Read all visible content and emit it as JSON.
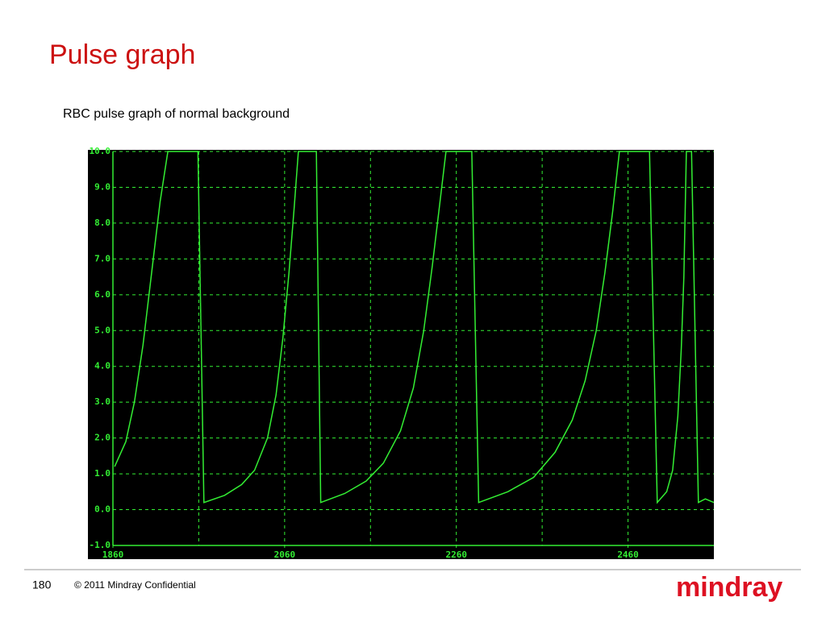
{
  "chart_data": {
    "type": "line",
    "title": "Pulse graph",
    "subtitle": "RBC pulse graph of normal background",
    "x": [
      1862,
      1875,
      1885,
      1895,
      1905,
      1915,
      1924,
      1959,
      1966,
      1990,
      2010,
      2025,
      2040,
      2050,
      2058,
      2065,
      2071,
      2076,
      2097,
      2102,
      2130,
      2155,
      2175,
      2195,
      2210,
      2222,
      2232,
      2241,
      2248,
      2278,
      2286,
      2320,
      2350,
      2375,
      2395,
      2410,
      2423,
      2433,
      2442,
      2450,
      2485,
      2494,
      2505,
      2512,
      2518,
      2522,
      2525,
      2528,
      2534,
      2542,
      2550,
      2560
    ],
    "series": [
      {
        "color": "#33ee33",
        "values": [
          1.2,
          1.9,
          3.0,
          4.6,
          6.6,
          8.6,
          10,
          10,
          0.2,
          0.4,
          0.7,
          1.1,
          2.0,
          3.2,
          4.8,
          6.6,
          8.4,
          10,
          10,
          0.2,
          0.45,
          0.8,
          1.3,
          2.2,
          3.4,
          5.0,
          6.8,
          8.6,
          10,
          10,
          0.2,
          0.5,
          0.9,
          1.6,
          2.5,
          3.6,
          5.0,
          6.6,
          8.3,
          10,
          10,
          0.2,
          0.5,
          1.1,
          2.6,
          4.5,
          6.5,
          10,
          10,
          0.2,
          0.3,
          0.2
        ]
      }
    ],
    "xlim": [
      1860,
      2560
    ],
    "xticks": [
      1860,
      2060,
      2260,
      2460
    ],
    "xgrid": [
      1960,
      2160,
      2360
    ],
    "ylim": [
      -1,
      10
    ],
    "yticks": [
      {
        "value": -1,
        "label": "-1.0"
      },
      {
        "value": 0,
        "label": "0.0"
      },
      {
        "value": 1,
        "label": "1.0"
      },
      {
        "value": 2,
        "label": "2.0"
      },
      {
        "value": 3,
        "label": "3.0"
      },
      {
        "value": 4,
        "label": "4.0"
      },
      {
        "value": 5,
        "label": "5.0"
      },
      {
        "value": 6,
        "label": "6.0"
      },
      {
        "value": 7,
        "label": "7.0"
      },
      {
        "value": 8,
        "label": "8.0"
      },
      {
        "value": 9,
        "label": "9.0"
      },
      {
        "value": 10,
        "label": "10.0"
      }
    ],
    "grid": true
  },
  "footer": {
    "page": "180",
    "copyright": "© 2011 Mindray Confidential",
    "logo": "mindray"
  }
}
